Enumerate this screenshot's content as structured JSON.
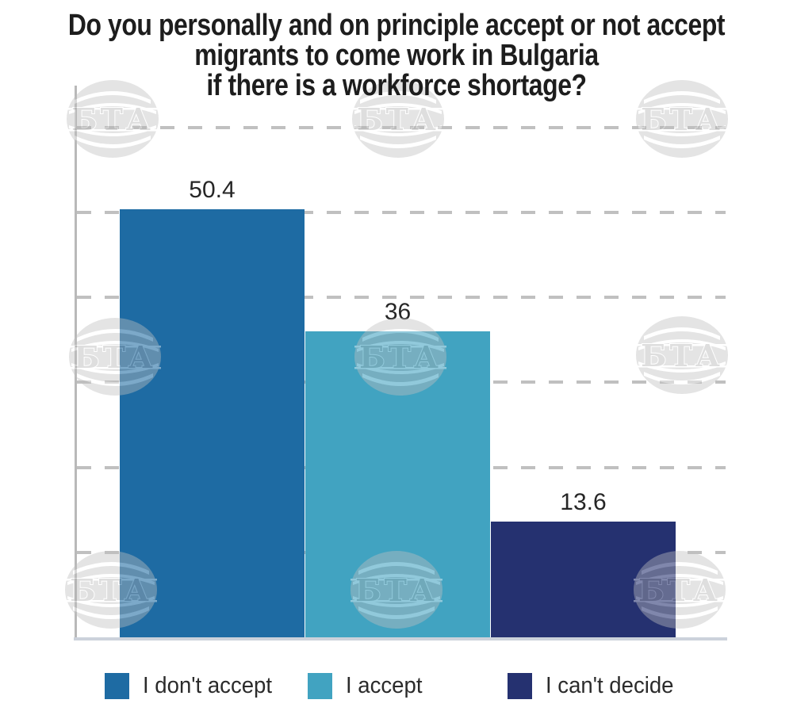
{
  "title": {
    "lines": [
      "Do you personally and on principle accept or not accept",
      "migrants to come work in Bulgaria",
      "if there is a workforce shortage?"
    ]
  },
  "watermark": {
    "text": "БТА"
  },
  "chart_data": {
    "type": "bar",
    "title": "Do you personally and on principle accept or not accept migrants to come work in Bulgaria if there is a workforce shortage?",
    "categories": [
      "I don't accept",
      "I accept",
      "I can't decide"
    ],
    "values": [
      50.4,
      36,
      13.6
    ],
    "value_labels": [
      "50.4",
      "36",
      "13.6"
    ],
    "bar_colors": [
      "#1e6ba3",
      "#41a3c1",
      "#253170"
    ],
    "xlabel": "",
    "ylabel": "",
    "ylim": [
      0,
      65
    ],
    "grid_values": [
      10,
      20,
      30,
      40,
      50,
      60
    ],
    "grid_style": "dashed-horizontal",
    "y_tick_labels_shown": false,
    "legend_position": "bottom"
  },
  "legend": {
    "items": [
      {
        "label": "I don't accept",
        "color": "#1e6ba3"
      },
      {
        "label": "I accept",
        "color": "#41a3c1"
      },
      {
        "label": "I can't decide",
        "color": "#253170"
      }
    ]
  },
  "colors": {
    "background": "#ffffff",
    "title_text": "#1d1d1d",
    "value_text": "#262626",
    "legend_text": "#2b2b2b",
    "gridline": "#ababab",
    "axis_line": "#b9b9b9",
    "baseline": "#ccd2db",
    "watermark_gray": "#bfbfbf"
  }
}
